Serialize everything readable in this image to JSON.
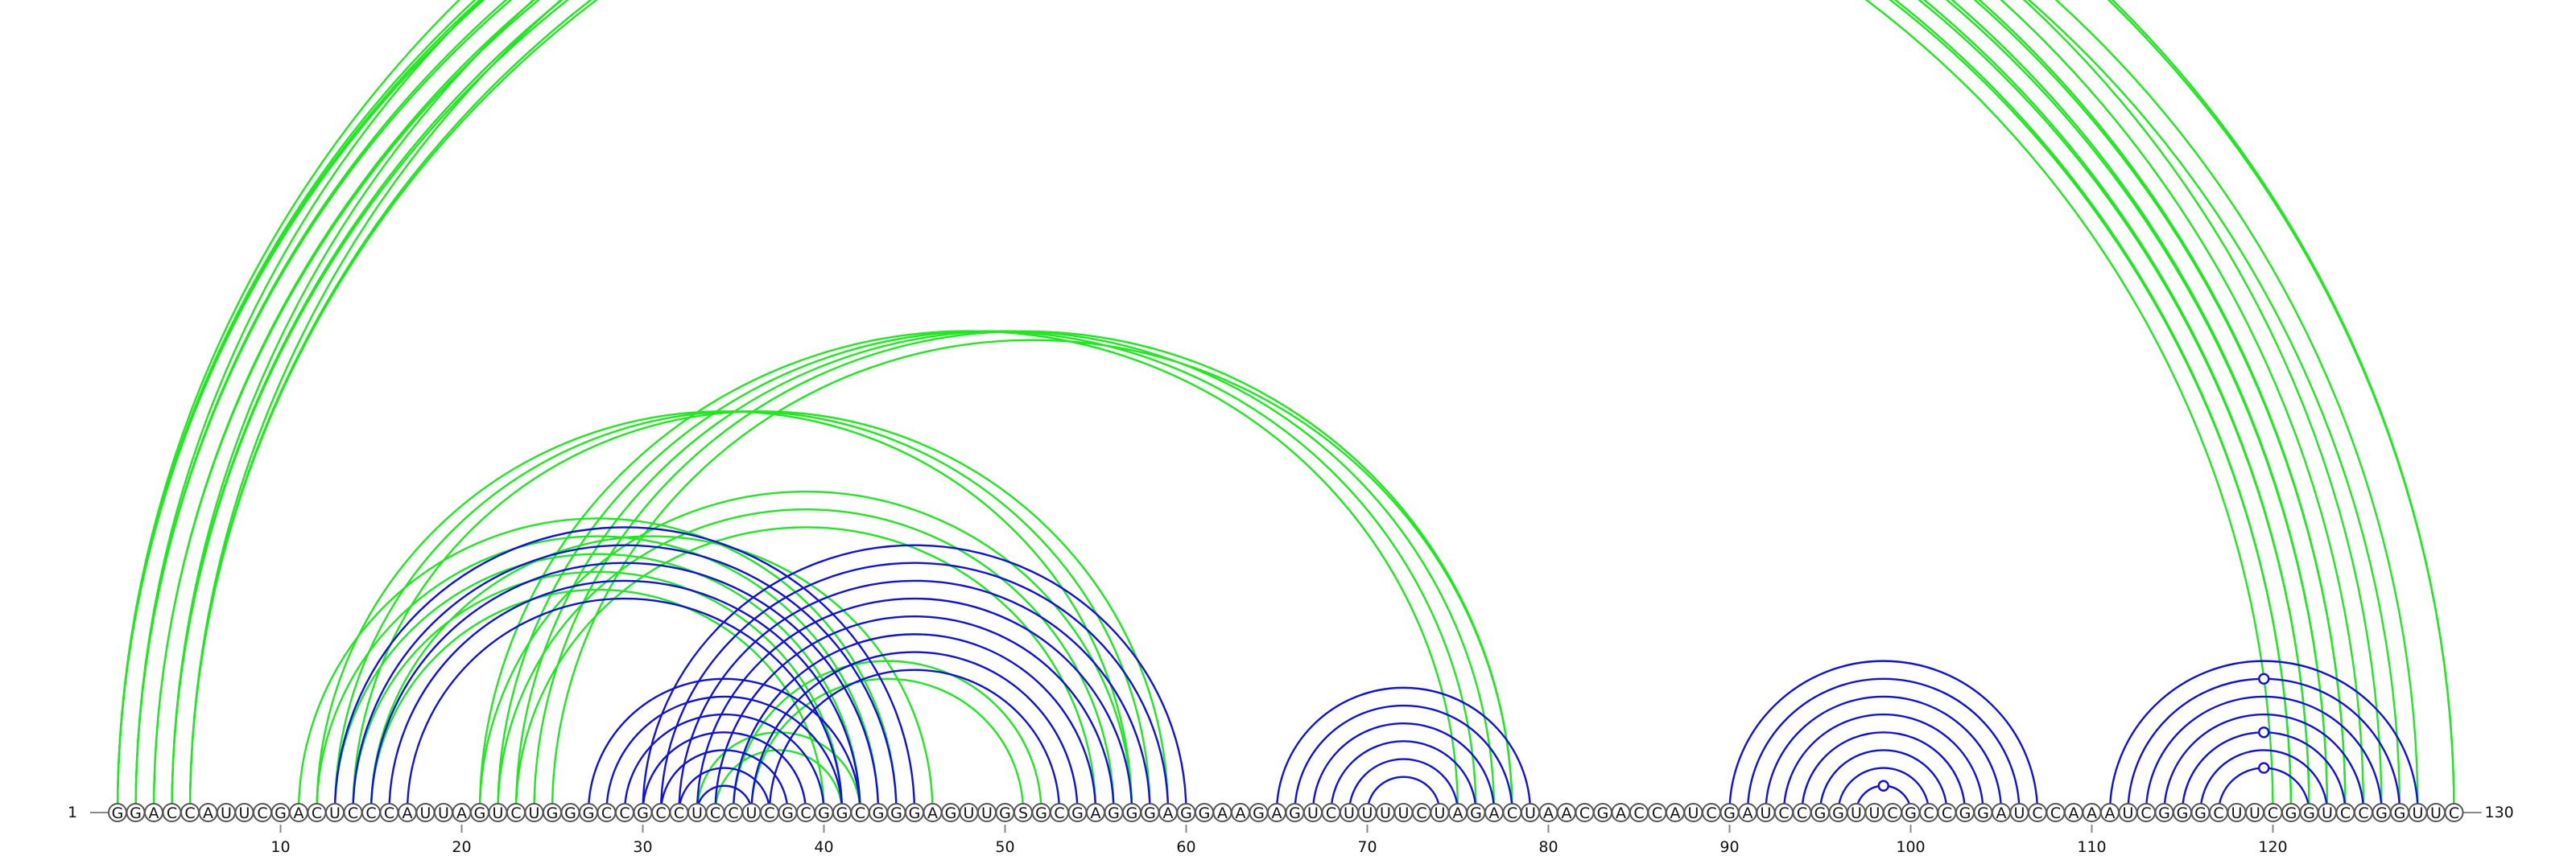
{
  "sequence": "GGACCAUUCGACUCCCAUUAGUCUGGGCCGCCUCCUCGCGGCGGGAGUUGSGCGAGGGAGGAAGAGUCUUUUCUAGACUAACGACCAUCGAUCCGGUUCGCCGGAUCCAAAUCGGGCUUCGGUCCGGUUC",
  "start_label": "1",
  "end_label": "130",
  "ticks": [
    10,
    20,
    30,
    40,
    50,
    60,
    70,
    80,
    90,
    100,
    110,
    120
  ],
  "colors": {
    "blue": "#1010e0",
    "green": "#1ee81e",
    "line": "#888888"
  },
  "chart_data": {
    "type": "arc-diagram",
    "length": 130,
    "arcs": [
      {
        "i": 1,
        "j": 124,
        "color": "green"
      },
      {
        "i": 1,
        "j": 125,
        "color": "green"
      },
      {
        "i": 1,
        "j": 126,
        "color": "green"
      },
      {
        "i": 2,
        "j": 123,
        "color": "green"
      },
      {
        "i": 2,
        "j": 124,
        "color": "green"
      },
      {
        "i": 3,
        "j": 122,
        "color": "green"
      },
      {
        "i": 3,
        "j": 123,
        "color": "green"
      },
      {
        "i": 4,
        "j": 121,
        "color": "green"
      },
      {
        "i": 4,
        "j": 122,
        "color": "green"
      },
      {
        "i": 5,
        "j": 120,
        "color": "green"
      },
      {
        "i": 5,
        "j": 121,
        "color": "green"
      },
      {
        "i": 1,
        "j": 130,
        "color": "green",
        "marker": true
      },
      {
        "i": 2,
        "j": 130,
        "color": "green"
      },
      {
        "i": 4,
        "j": 128,
        "color": "green"
      },
      {
        "i": 5,
        "j": 127,
        "color": "green"
      },
      {
        "i": 11,
        "j": 44,
        "color": "green"
      },
      {
        "i": 12,
        "j": 43,
        "color": "green"
      },
      {
        "i": 13,
        "j": 42,
        "color": "green"
      },
      {
        "i": 14,
        "j": 41,
        "color": "green"
      },
      {
        "i": 15,
        "j": 40,
        "color": "green"
      },
      {
        "i": 15,
        "j": 46,
        "color": "green"
      },
      {
        "i": 12,
        "j": 57,
        "color": "green"
      },
      {
        "i": 13,
        "j": 58,
        "color": "green"
      },
      {
        "i": 14,
        "j": 59,
        "color": "green"
      },
      {
        "i": 21,
        "j": 75,
        "color": "green"
      },
      {
        "i": 22,
        "j": 76,
        "color": "green"
      },
      {
        "i": 23,
        "j": 77,
        "color": "green"
      },
      {
        "i": 24,
        "j": 78,
        "color": "green"
      },
      {
        "i": 25,
        "j": 78,
        "color": "green"
      },
      {
        "i": 21,
        "j": 57,
        "color": "green"
      },
      {
        "i": 22,
        "j": 56,
        "color": "green"
      },
      {
        "i": 23,
        "j": 55,
        "color": "green"
      },
      {
        "i": 35,
        "j": 52,
        "color": "green"
      },
      {
        "i": 36,
        "j": 51,
        "color": "green"
      },
      {
        "i": 33,
        "j": 42,
        "color": "green"
      },
      {
        "i": 34,
        "j": 41,
        "color": "green"
      },
      {
        "i": 13,
        "j": 45,
        "color": "blue"
      },
      {
        "i": 14,
        "j": 44,
        "color": "blue"
      },
      {
        "i": 15,
        "j": 43,
        "color": "blue"
      },
      {
        "i": 16,
        "j": 42,
        "color": "blue"
      },
      {
        "i": 17,
        "j": 41,
        "color": "blue"
      },
      {
        "i": 27,
        "j": 42,
        "color": "blue"
      },
      {
        "i": 28,
        "j": 41,
        "color": "blue"
      },
      {
        "i": 29,
        "j": 40,
        "color": "blue"
      },
      {
        "i": 30,
        "j": 39,
        "color": "blue"
      },
      {
        "i": 31,
        "j": 38,
        "color": "blue"
      },
      {
        "i": 32,
        "j": 37,
        "color": "blue"
      },
      {
        "i": 33,
        "j": 36,
        "color": "blue"
      },
      {
        "i": 30,
        "j": 60,
        "color": "blue"
      },
      {
        "i": 31,
        "j": 59,
        "color": "blue"
      },
      {
        "i": 32,
        "j": 58,
        "color": "blue"
      },
      {
        "i": 33,
        "j": 57,
        "color": "blue"
      },
      {
        "i": 34,
        "j": 56,
        "color": "blue"
      },
      {
        "i": 35,
        "j": 55,
        "color": "blue"
      },
      {
        "i": 36,
        "j": 54,
        "color": "blue"
      },
      {
        "i": 37,
        "j": 53,
        "color": "blue"
      },
      {
        "i": 65,
        "j": 79,
        "color": "blue"
      },
      {
        "i": 66,
        "j": 78,
        "color": "blue"
      },
      {
        "i": 67,
        "j": 77,
        "color": "blue"
      },
      {
        "i": 68,
        "j": 76,
        "color": "blue"
      },
      {
        "i": 69,
        "j": 75,
        "color": "blue"
      },
      {
        "i": 70,
        "j": 74,
        "color": "blue"
      },
      {
        "i": 90,
        "j": 107,
        "color": "blue"
      },
      {
        "i": 91,
        "j": 106,
        "color": "blue"
      },
      {
        "i": 92,
        "j": 105,
        "color": "blue"
      },
      {
        "i": 93,
        "j": 104,
        "color": "blue"
      },
      {
        "i": 94,
        "j": 103,
        "color": "blue"
      },
      {
        "i": 95,
        "j": 102,
        "color": "blue"
      },
      {
        "i": 96,
        "j": 101,
        "color": "blue"
      },
      {
        "i": 97,
        "j": 100,
        "color": "blue",
        "marker": true
      },
      {
        "i": 111,
        "j": 128,
        "color": "blue"
      },
      {
        "i": 112,
        "j": 127,
        "color": "blue",
        "marker": true
      },
      {
        "i": 113,
        "j": 126,
        "color": "blue"
      },
      {
        "i": 114,
        "j": 125,
        "color": "blue"
      },
      {
        "i": 115,
        "j": 124,
        "color": "blue",
        "marker": true
      },
      {
        "i": 116,
        "j": 123,
        "color": "blue"
      },
      {
        "i": 117,
        "j": 122,
        "color": "blue",
        "marker": true
      }
    ]
  }
}
